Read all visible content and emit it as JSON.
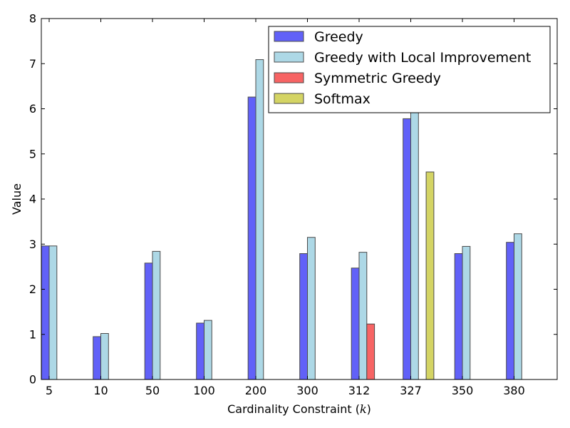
{
  "chart_data": {
    "type": "bar",
    "title": "",
    "xlabel": "Cardinality Constraint ($k$)",
    "xlabel_main": "Cardinality Constraint (",
    "xlabel_var": "k",
    "xlabel_close": ")",
    "ylabel": "Value",
    "ylim": [
      0,
      8
    ],
    "yticks": [
      "0",
      "1",
      "2",
      "3",
      "4",
      "5",
      "6",
      "7",
      "8"
    ],
    "categories": [
      "5",
      "10",
      "50",
      "100",
      "200",
      "300",
      "312",
      "327",
      "350",
      "380"
    ],
    "legend_position": "top-right",
    "series": [
      {
        "name": "Greedy",
        "color": "#6161f8",
        "values": [
          2.96,
          0.95,
          2.58,
          1.25,
          6.26,
          2.79,
          2.47,
          5.78,
          2.79,
          3.04
        ]
      },
      {
        "name": "Greedy with Local Improvement",
        "color": "#add8e6",
        "values": [
          2.96,
          1.02,
          2.84,
          1.31,
          7.09,
          3.15,
          2.82,
          6.0,
          2.95,
          3.23
        ]
      },
      {
        "name": "Symmetric Greedy",
        "color": "#f76464",
        "values": [
          0,
          0,
          0,
          0,
          0,
          0,
          1.23,
          0,
          0,
          0
        ]
      },
      {
        "name": "Softmax",
        "color": "#d4d464",
        "values": [
          0,
          0,
          0,
          0,
          0,
          0,
          0,
          4.6,
          0,
          0
        ]
      }
    ]
  }
}
